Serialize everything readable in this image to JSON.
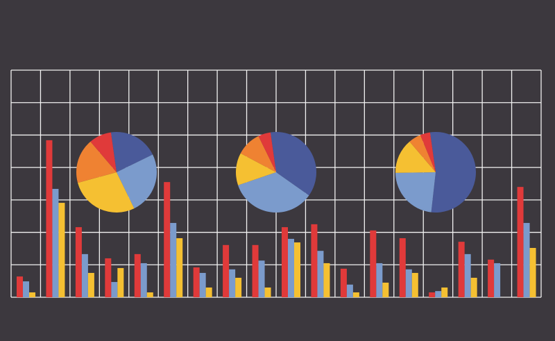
{
  "chart_data": [
    {
      "type": "bar",
      "ylim": [
        0,
        7
      ],
      "series": [
        {
          "color": "#e03a3a",
          "values": [
            0.64,
            4.84,
            2.16,
            1.2,
            1.33,
            3.55,
            0.92,
            1.61,
            1.61,
            2.16,
            2.25,
            0.88,
            2.06,
            1.82,
            0.15,
            1.71,
            1.16,
            3.4
          ]
        },
        {
          "color": "#7b9bcc",
          "values": [
            0.49,
            3.34,
            1.33,
            0.47,
            1.05,
            2.29,
            0.75,
            0.86,
            1.13,
            1.8,
            1.43,
            0.39,
            1.05,
            0.86,
            0.19,
            1.33,
            1.05,
            2.29
          ]
        },
        {
          "color": "#f5c032",
          "values": [
            0.15,
            2.91,
            0.75,
            0.9,
            0.15,
            1.82,
            0.3,
            0.6,
            0.3,
            1.69,
            1.05,
            0.15,
            0.45,
            0.75,
            0.3,
            0.6,
            0,
            1.52
          ]
        }
      ]
    },
    {
      "type": "pie",
      "values": [
        20,
        25,
        28,
        18,
        9
      ],
      "colors": [
        "#4a5a9a",
        "#7b9bcc",
        "#f5c032",
        "#ef8232",
        "#e03a3a"
      ]
    },
    {
      "type": "pie",
      "values": [
        37,
        35,
        13,
        10,
        5
      ],
      "colors": [
        "#4a5a9a",
        "#7b9bcc",
        "#f5c032",
        "#ef8232",
        "#e03a3a"
      ]
    },
    {
      "type": "pie",
      "values": [
        54,
        23,
        14,
        5,
        4
      ],
      "colors": [
        "#4a5a9a",
        "#7b9bcc",
        "#f5c032",
        "#ef8232",
        "#e03a3a"
      ]
    }
  ]
}
